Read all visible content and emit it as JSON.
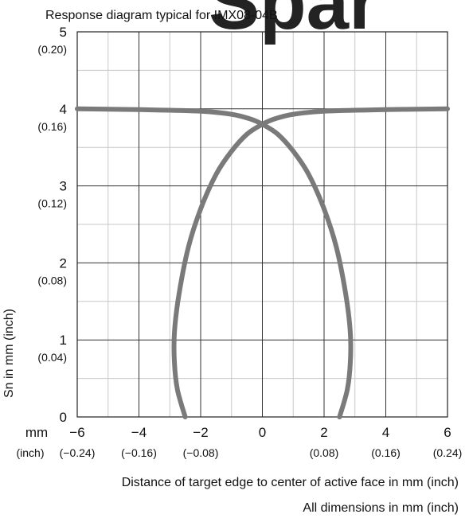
{
  "chart_data": {
    "type": "line",
    "title": "Response diagram typical for IMX08-04B",
    "ylabel": "Sn in mm (inch)",
    "xlabel": "Distance of target edge to center of active face in mm (inch)",
    "footnote": "All dimensions in mm (inch)",
    "x_unit_label": "mm",
    "x_inch_unit_label": "(inch)",
    "xlim": [
      -6,
      6
    ],
    "ylim": [
      0,
      5
    ],
    "grid": true,
    "x_ticks": [
      {
        "value": -6,
        "label": "−6",
        "inch": "(−0.24)"
      },
      {
        "value": -4,
        "label": "−4",
        "inch": "(−0.16)"
      },
      {
        "value": -2,
        "label": "−2",
        "inch": "(−0.08)"
      },
      {
        "value": 0,
        "label": "0",
        "inch": ""
      },
      {
        "value": 2,
        "label": "2",
        "inch": "(0.08)"
      },
      {
        "value": 4,
        "label": "4",
        "inch": "(0.16)"
      },
      {
        "value": 6,
        "label": "6",
        "inch": "(0.24)"
      }
    ],
    "y_ticks": [
      {
        "value": 0,
        "label": "0",
        "inch": ""
      },
      {
        "value": 1,
        "label": "1",
        "inch": "(0.04)"
      },
      {
        "value": 2,
        "label": "2",
        "inch": "(0.08)"
      },
      {
        "value": 3,
        "label": "3",
        "inch": "(0.12)"
      },
      {
        "value": 4,
        "label": "4",
        "inch": "(0.16)"
      },
      {
        "value": 5,
        "label": "5",
        "inch": "(0.20)"
      }
    ],
    "series": [
      {
        "color": "#7a7a7a",
        "points": [
          [
            -6,
            4.0
          ],
          [
            -4,
            3.99
          ],
          [
            -2,
            3.97
          ],
          [
            -1,
            3.93
          ],
          [
            -0.4,
            3.87
          ],
          [
            0,
            3.8
          ],
          [
            0.5,
            3.67
          ],
          [
            1.0,
            3.45
          ],
          [
            1.5,
            3.15
          ],
          [
            2.0,
            2.7
          ],
          [
            2.4,
            2.2
          ],
          [
            2.7,
            1.6
          ],
          [
            2.85,
            1.1
          ],
          [
            2.85,
            0.7
          ],
          [
            2.75,
            0.35
          ],
          [
            2.5,
            0.0
          ]
        ]
      },
      {
        "color": "#7a7a7a",
        "points": [
          [
            6,
            4.0
          ],
          [
            4,
            3.99
          ],
          [
            2,
            3.97
          ],
          [
            1,
            3.93
          ],
          [
            0.4,
            3.87
          ],
          [
            0,
            3.8
          ],
          [
            -0.5,
            3.67
          ],
          [
            -1.0,
            3.45
          ],
          [
            -1.5,
            3.15
          ],
          [
            -2.0,
            2.7
          ],
          [
            -2.4,
            2.2
          ],
          [
            -2.7,
            1.6
          ],
          [
            -2.85,
            1.1
          ],
          [
            -2.85,
            0.7
          ],
          [
            -2.75,
            0.35
          ],
          [
            -2.5,
            0.0
          ]
        ]
      }
    ]
  },
  "watermark": {
    "text": "Spar",
    "color": "#e31e24"
  }
}
